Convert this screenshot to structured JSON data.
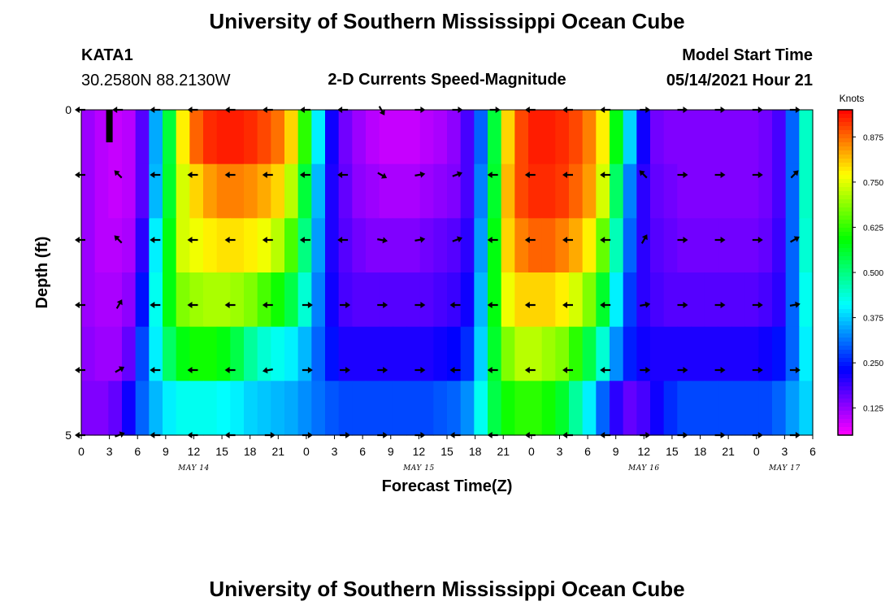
{
  "title_top": "University of Southern Mississippi Ocean Cube",
  "title_bottom": "University of Southern Mississippi Ocean Cube",
  "station": {
    "id": "KATA1",
    "coords": "30.2580N  88.2130W"
  },
  "model": {
    "label": "Model Start Time",
    "value": "05/14/2021 Hour 21"
  },
  "colors": {
    "arrow": "#000000",
    "bar_marker": "#000000"
  },
  "chart_data": {
    "type": "heatmap",
    "title": "2-D Currents Speed-Magnitude",
    "xlabel": "Forecast Time(Z)",
    "ylabel": "Depth (ft)",
    "x_ticks": [
      "0",
      "3",
      "6",
      "9",
      "12",
      "15",
      "18",
      "21",
      "0",
      "3",
      "6",
      "9",
      "12",
      "15",
      "18",
      "21",
      "0",
      "3",
      "6",
      "9",
      "12",
      "15",
      "18",
      "21",
      "0",
      "3",
      "6"
    ],
    "x_range_hours": [
      0,
      78
    ],
    "date_labels": [
      {
        "text": "MAY 14",
        "hour": 12
      },
      {
        "text": "MAY 15",
        "hour": 36
      },
      {
        "text": "MAY 16",
        "hour": 60
      },
      {
        "text": "MAY 17",
        "hour": 75
      }
    ],
    "y_ticks": [
      "0",
      "5"
    ],
    "y_range": [
      0,
      5
    ],
    "colorbar": {
      "units": "Knots",
      "min": 0.05,
      "max": 0.95,
      "ticks": [
        {
          "label": "0.875",
          "value": 0.875
        },
        {
          "label": "0.750",
          "value": 0.75
        },
        {
          "label": "0.625",
          "value": 0.625
        },
        {
          "label": "0.500",
          "value": 0.5
        },
        {
          "label": "0.375",
          "value": 0.375
        },
        {
          "label": "0.250",
          "value": 0.25
        },
        {
          "label": "0.125",
          "value": 0.125
        }
      ]
    },
    "speed_knots": [
      [
        0.12,
        0.1,
        0.09,
        0.1,
        0.17,
        0.35,
        0.55,
        0.78,
        0.88,
        0.92,
        0.93,
        0.93,
        0.92,
        0.9,
        0.87,
        0.8,
        0.62,
        0.4,
        0.22,
        0.15,
        0.12,
        0.1,
        0.09,
        0.09,
        0.09,
        0.1,
        0.11,
        0.13,
        0.18,
        0.3,
        0.55,
        0.8,
        0.9,
        0.93,
        0.93,
        0.92,
        0.9,
        0.86,
        0.78,
        0.58,
        0.38,
        0.22,
        0.15,
        0.14,
        0.14,
        0.14,
        0.14,
        0.14,
        0.14,
        0.14,
        0.15,
        0.18,
        0.3,
        0.45
      ],
      [
        0.12,
        0.1,
        0.09,
        0.1,
        0.17,
        0.36,
        0.56,
        0.74,
        0.8,
        0.84,
        0.86,
        0.86,
        0.85,
        0.83,
        0.8,
        0.72,
        0.55,
        0.36,
        0.21,
        0.16,
        0.13,
        0.12,
        0.11,
        0.11,
        0.11,
        0.12,
        0.13,
        0.14,
        0.18,
        0.32,
        0.56,
        0.82,
        0.9,
        0.92,
        0.92,
        0.91,
        0.88,
        0.84,
        0.74,
        0.52,
        0.32,
        0.2,
        0.16,
        0.15,
        0.14,
        0.14,
        0.14,
        0.14,
        0.14,
        0.14,
        0.15,
        0.18,
        0.3,
        0.45
      ],
      [
        0.12,
        0.1,
        0.1,
        0.11,
        0.2,
        0.4,
        0.58,
        0.74,
        0.76,
        0.78,
        0.79,
        0.79,
        0.78,
        0.76,
        0.72,
        0.64,
        0.5,
        0.34,
        0.21,
        0.17,
        0.15,
        0.14,
        0.14,
        0.14,
        0.14,
        0.15,
        0.16,
        0.17,
        0.2,
        0.34,
        0.58,
        0.8,
        0.86,
        0.88,
        0.88,
        0.86,
        0.83,
        0.78,
        0.66,
        0.46,
        0.3,
        0.2,
        0.17,
        0.16,
        0.15,
        0.15,
        0.15,
        0.15,
        0.15,
        0.15,
        0.16,
        0.19,
        0.3,
        0.44
      ],
      [
        0.12,
        0.11,
        0.11,
        0.13,
        0.24,
        0.42,
        0.58,
        0.68,
        0.7,
        0.71,
        0.71,
        0.7,
        0.68,
        0.64,
        0.6,
        0.54,
        0.44,
        0.32,
        0.22,
        0.18,
        0.17,
        0.17,
        0.17,
        0.17,
        0.17,
        0.17,
        0.18,
        0.19,
        0.22,
        0.36,
        0.58,
        0.76,
        0.8,
        0.8,
        0.8,
        0.78,
        0.74,
        0.68,
        0.56,
        0.4,
        0.27,
        0.2,
        0.18,
        0.17,
        0.17,
        0.17,
        0.17,
        0.17,
        0.17,
        0.17,
        0.18,
        0.2,
        0.3,
        0.42
      ],
      [
        0.13,
        0.12,
        0.12,
        0.16,
        0.28,
        0.4,
        0.52,
        0.58,
        0.6,
        0.6,
        0.58,
        0.54,
        0.48,
        0.44,
        0.42,
        0.4,
        0.36,
        0.3,
        0.24,
        0.21,
        0.21,
        0.21,
        0.21,
        0.21,
        0.21,
        0.21,
        0.22,
        0.23,
        0.26,
        0.38,
        0.56,
        0.68,
        0.72,
        0.72,
        0.7,
        0.68,
        0.62,
        0.54,
        0.44,
        0.33,
        0.25,
        0.22,
        0.21,
        0.21,
        0.21,
        0.21,
        0.21,
        0.21,
        0.21,
        0.21,
        0.22,
        0.24,
        0.3,
        0.4
      ],
      [
        0.14,
        0.14,
        0.16,
        0.22,
        0.3,
        0.36,
        0.4,
        0.42,
        0.42,
        0.42,
        0.41,
        0.4,
        0.38,
        0.37,
        0.36,
        0.35,
        0.33,
        0.31,
        0.29,
        0.28,
        0.28,
        0.28,
        0.28,
        0.28,
        0.28,
        0.28,
        0.29,
        0.3,
        0.33,
        0.42,
        0.54,
        0.6,
        0.62,
        0.62,
        0.6,
        0.56,
        0.48,
        0.4,
        0.3,
        0.2,
        0.16,
        0.18,
        0.22,
        0.26,
        0.28,
        0.28,
        0.28,
        0.28,
        0.28,
        0.28,
        0.28,
        0.3,
        0.34,
        0.38
      ]
    ],
    "arrow_rows_ft": [
      0,
      1,
      2,
      3,
      4,
      5
    ],
    "vectors": [
      {
        "depth": 0,
        "hours": [
          0,
          4,
          8,
          12,
          16,
          20,
          24,
          28,
          32,
          36,
          40,
          44,
          48,
          52,
          56,
          60,
          64,
          68,
          72,
          76
        ],
        "dir_deg": [
          180,
          180,
          180,
          180,
          180,
          180,
          180,
          180,
          300,
          0,
          0,
          0,
          180,
          180,
          180,
          0,
          0,
          0,
          0,
          0
        ]
      },
      {
        "depth": 1,
        "hours": [
          0,
          4,
          8,
          12,
          16,
          20,
          24,
          28,
          32,
          36,
          40,
          44,
          48,
          52,
          56,
          60,
          64,
          68,
          72,
          76
        ],
        "dir_deg": [
          180,
          135,
          180,
          180,
          180,
          180,
          180,
          180,
          330,
          10,
          20,
          180,
          180,
          180,
          180,
          135,
          0,
          0,
          0,
          45
        ]
      },
      {
        "depth": 2,
        "hours": [
          0,
          4,
          8,
          12,
          16,
          20,
          24,
          28,
          32,
          36,
          40,
          44,
          48,
          52,
          56,
          60,
          64,
          68,
          72,
          76
        ],
        "dir_deg": [
          180,
          135,
          180,
          180,
          180,
          180,
          180,
          180,
          350,
          10,
          20,
          180,
          180,
          180,
          180,
          60,
          0,
          0,
          0,
          30
        ]
      },
      {
        "depth": 3,
        "hours": [
          0,
          4,
          8,
          12,
          16,
          20,
          24,
          28,
          32,
          36,
          40,
          44,
          48,
          52,
          56,
          60,
          64,
          68,
          72,
          76
        ],
        "dir_deg": [
          180,
          60,
          180,
          180,
          180,
          180,
          0,
          0,
          0,
          0,
          180,
          180,
          180,
          180,
          180,
          10,
          0,
          0,
          0,
          10
        ]
      },
      {
        "depth": 4,
        "hours": [
          0,
          4,
          8,
          12,
          16,
          20,
          24,
          28,
          32,
          36,
          40,
          44,
          48,
          52,
          56,
          60,
          64,
          68,
          72,
          76
        ],
        "dir_deg": [
          180,
          30,
          180,
          180,
          180,
          190,
          0,
          0,
          0,
          0,
          180,
          180,
          180,
          180,
          180,
          0,
          0,
          0,
          0,
          0
        ]
      },
      {
        "depth": 5,
        "hours": [
          0,
          4,
          8,
          12,
          16,
          20,
          24,
          28,
          32,
          36,
          40,
          44,
          48,
          52,
          56,
          60,
          64,
          68,
          72,
          76
        ],
        "dir_deg": [
          180,
          20,
          180,
          180,
          180,
          0,
          0,
          0,
          0,
          0,
          180,
          180,
          180,
          180,
          180,
          0,
          0,
          0,
          0,
          0
        ]
      }
    ],
    "current_time_marker_hour": 3
  }
}
